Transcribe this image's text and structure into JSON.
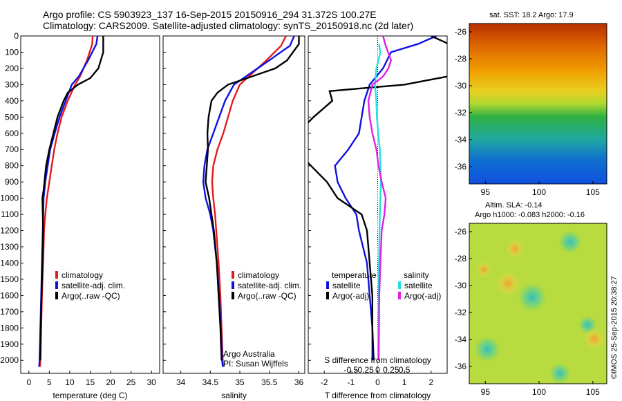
{
  "header": {
    "line1": "Argo profile: CS 5903923_137 16-Sep-2015 20150916_294 31.372S 100.27E",
    "line2": "Climatology: CARS2009. Satellite-adjusted climatology: synTS_20150918.nc (2d later)"
  },
  "colors": {
    "climatology": "#e41a1c",
    "satellite": "#1010e0",
    "argo": "#000000",
    "sat_cyan": "#22e0e0",
    "argo_magenta": "#e020e0"
  },
  "chart_data": [
    {
      "type": "line",
      "name": "temperature-profile",
      "xlabel": "temperature (deg C)",
      "ylabel": "",
      "xlim": [
        -2,
        32
      ],
      "ylim": [
        2080,
        0
      ],
      "xticks": [
        0,
        5,
        10,
        15,
        20,
        25,
        30
      ],
      "yticks": [
        0,
        100,
        200,
        300,
        400,
        500,
        600,
        700,
        800,
        900,
        1000,
        1100,
        1200,
        1300,
        1400,
        1500,
        1600,
        1700,
        1800,
        1900,
        2000
      ],
      "legend": [
        "climatology",
        "satellite-adj. clim.",
        "Argo(..raw -QC)"
      ],
      "series": [
        {
          "name": "climatology",
          "color": "#e41a1c",
          "points": [
            [
              15.6,
              0
            ],
            [
              15.5,
              50
            ],
            [
              14.2,
              150
            ],
            [
              12.5,
              250
            ],
            [
              11.3,
              300
            ],
            [
              9.5,
              400
            ],
            [
              8.0,
              500
            ],
            [
              7.0,
              600
            ],
            [
              6.2,
              700
            ],
            [
              5.6,
              800
            ],
            [
              5.0,
              900
            ],
            [
              4.4,
              1000
            ],
            [
              4.0,
              1100
            ],
            [
              3.7,
              1200
            ],
            [
              3.5,
              1400
            ],
            [
              3.2,
              1600
            ],
            [
              3.0,
              1800
            ],
            [
              2.8,
              2000
            ],
            [
              2.7,
              2040
            ]
          ]
        },
        {
          "name": "satellite-adj. clim.",
          "color": "#1010e0",
          "points": [
            [
              16.8,
              0
            ],
            [
              16.5,
              50
            ],
            [
              14.5,
              150
            ],
            [
              12.2,
              250
            ],
            [
              10.5,
              300
            ],
            [
              9.0,
              400
            ],
            [
              7.5,
              500
            ],
            [
              6.3,
              600
            ],
            [
              5.2,
              700
            ],
            [
              4.6,
              800
            ],
            [
              4.0,
              900
            ],
            [
              3.6,
              1000
            ],
            [
              3.5,
              1100
            ],
            [
              3.4,
              1200
            ],
            [
              3.2,
              1400
            ],
            [
              3.0,
              1600
            ],
            [
              2.8,
              1800
            ],
            [
              2.6,
              2000
            ],
            [
              2.5,
              2040
            ]
          ]
        },
        {
          "name": "Argo(..raw -QC)",
          "color": "#000000",
          "points": [
            [
              18.2,
              0
            ],
            [
              18.2,
              100
            ],
            [
              17.6,
              150
            ],
            [
              17.0,
              200
            ],
            [
              15.0,
              260
            ],
            [
              12.0,
              300
            ],
            [
              9.5,
              350
            ],
            [
              8.5,
              400
            ],
            [
              7.0,
              500
            ],
            [
              6.0,
              600
            ],
            [
              5.0,
              700
            ],
            [
              4.2,
              800
            ],
            [
              3.8,
              900
            ],
            [
              3.6,
              950
            ],
            [
              3.3,
              1000
            ],
            [
              3.4,
              1100
            ],
            [
              3.5,
              1200
            ],
            [
              3.3,
              1400
            ],
            [
              3.1,
              1600
            ],
            [
              2.9,
              1800
            ],
            [
              2.8,
              2000
            ]
          ]
        }
      ]
    },
    {
      "type": "line",
      "name": "salinity-profile",
      "xlabel": "salinity",
      "ylabel": "",
      "xlim": [
        33.7,
        36.1
      ],
      "ylim": [
        2080,
        0
      ],
      "xticks": [
        34,
        34.5,
        35,
        35.5,
        36
      ],
      "legend": [
        "climatology",
        "satellite-adj. clim.",
        "Argo(..raw -QC)"
      ],
      "annotation": [
        "Argo Australia",
        "PI: Susan Wijffels"
      ],
      "series": [
        {
          "name": "climatology",
          "color": "#e41a1c",
          "points": [
            [
              35.78,
              0
            ],
            [
              35.7,
              60
            ],
            [
              35.45,
              150
            ],
            [
              35.15,
              250
            ],
            [
              35.0,
              300
            ],
            [
              34.88,
              400
            ],
            [
              34.8,
              500
            ],
            [
              34.72,
              600
            ],
            [
              34.62,
              700
            ],
            [
              34.55,
              800
            ],
            [
              34.53,
              900
            ],
            [
              34.55,
              1000
            ],
            [
              34.58,
              1100
            ],
            [
              34.6,
              1200
            ],
            [
              34.64,
              1400
            ],
            [
              34.67,
              1600
            ],
            [
              34.69,
              1800
            ],
            [
              34.71,
              2000
            ],
            [
              34.72,
              2040
            ]
          ]
        },
        {
          "name": "satellite-adj. clim.",
          "color": "#1010e0",
          "points": [
            [
              35.92,
              0
            ],
            [
              35.85,
              60
            ],
            [
              35.5,
              150
            ],
            [
              35.1,
              250
            ],
            [
              34.9,
              300
            ],
            [
              34.75,
              400
            ],
            [
              34.65,
              500
            ],
            [
              34.55,
              600
            ],
            [
              34.45,
              700
            ],
            [
              34.4,
              800
            ],
            [
              34.38,
              900
            ],
            [
              34.42,
              1000
            ],
            [
              34.5,
              1100
            ],
            [
              34.55,
              1200
            ],
            [
              34.61,
              1400
            ],
            [
              34.65,
              1600
            ],
            [
              34.68,
              1800
            ],
            [
              34.7,
              2000
            ],
            [
              34.71,
              2040
            ]
          ]
        },
        {
          "name": "Argo(..raw -QC)",
          "color": "#000000",
          "points": [
            [
              36.0,
              0
            ],
            [
              36.0,
              50
            ],
            [
              35.8,
              150
            ],
            [
              35.6,
              200
            ],
            [
              35.2,
              250
            ],
            [
              34.8,
              300
            ],
            [
              34.62,
              350
            ],
            [
              34.52,
              400
            ],
            [
              34.47,
              500
            ],
            [
              34.45,
              600
            ],
            [
              34.46,
              700
            ],
            [
              34.44,
              800
            ],
            [
              34.42,
              900
            ],
            [
              34.48,
              1000
            ],
            [
              34.52,
              1100
            ],
            [
              34.56,
              1200
            ],
            [
              34.61,
              1400
            ],
            [
              34.64,
              1600
            ],
            [
              34.67,
              1800
            ],
            [
              34.69,
              2000
            ]
          ]
        }
      ]
    },
    {
      "type": "line",
      "name": "difference-profile",
      "xlabel": "T difference from climatology",
      "xlabel_top": "S difference from climatology",
      "xlim": [
        -2.6,
        2.6
      ],
      "ylim": [
        2080,
        0
      ],
      "xticks": [
        -2,
        -1,
        0,
        1,
        2
      ],
      "sticks": [
        -0.5,
        -0.25,
        0,
        0.25,
        0.5
      ],
      "sticks_labels": [
        "-0.5",
        "-0.25",
        "0",
        "0.25",
        "0.5"
      ],
      "legend_headers": [
        "temperature",
        "salinity"
      ],
      "legend": [
        "satellite",
        "Argo(-adj)",
        "satellite",
        "Argo(-adj)"
      ],
      "series": [
        {
          "name": "T satellite",
          "color": "#1010e0",
          "points": [
            [
              2.2,
              0
            ],
            [
              1.5,
              50
            ],
            [
              0.5,
              100
            ],
            [
              0.2,
              200
            ],
            [
              -0.3,
              300
            ],
            [
              -0.5,
              400
            ],
            [
              -0.6,
              500
            ],
            [
              -0.7,
              600
            ],
            [
              -1.1,
              700
            ],
            [
              -1.6,
              800
            ],
            [
              -1.5,
              900
            ],
            [
              -1.2,
              1000
            ],
            [
              -0.8,
              1100
            ],
            [
              -0.7,
              1200
            ],
            [
              -0.4,
              1400
            ],
            [
              -0.3,
              1600
            ],
            [
              -0.2,
              1800
            ],
            [
              -0.2,
              2000
            ]
          ]
        },
        {
          "name": "T Argo(-adj)",
          "color": "#000000",
          "points": [
            [
              2.0,
              0
            ],
            [
              2.8,
              60
            ],
            [
              3.0,
              150
            ],
            [
              2.6,
              250
            ],
            [
              1.0,
              300
            ],
            [
              -1.8,
              340
            ],
            [
              -1.7,
              400
            ],
            [
              -2.4,
              500
            ],
            [
              -3.0,
              600
            ],
            [
              -3.1,
              700
            ],
            [
              -2.5,
              800
            ],
            [
              -1.9,
              900
            ],
            [
              -1.5,
              1000
            ],
            [
              -0.6,
              1100
            ],
            [
              -0.4,
              1200
            ],
            [
              -0.3,
              1400
            ],
            [
              -0.2,
              1600
            ],
            [
              -0.2,
              1800
            ],
            [
              -0.15,
              2000
            ]
          ]
        },
        {
          "name": "S satellite",
          "color": "#22e0e0",
          "points": [
            [
              0.05,
              50
            ],
            [
              0.1,
              100
            ],
            [
              -0.05,
              200
            ],
            [
              -0.1,
              300
            ],
            [
              -0.05,
              400
            ],
            [
              -0.03,
              500
            ],
            [
              0.02,
              600
            ],
            [
              0.08,
              700
            ],
            [
              0.1,
              800
            ],
            [
              0.12,
              900
            ],
            [
              0.1,
              1000
            ],
            [
              0.08,
              1100
            ],
            [
              0.07,
              1200
            ],
            [
              0.05,
              1400
            ],
            [
              0.04,
              1600
            ],
            [
              0.03,
              1800
            ],
            [
              0.02,
              2000
            ]
          ]
        },
        {
          "name": "S Argo(-adj)",
          "color": "#e020e0",
          "points": [
            [
              0.2,
              0
            ],
            [
              0.3,
              60
            ],
            [
              0.5,
              150
            ],
            [
              0.4,
              200
            ],
            [
              0.2,
              250
            ],
            [
              -0.2,
              300
            ],
            [
              -0.35,
              400
            ],
            [
              -0.3,
              500
            ],
            [
              -0.2,
              600
            ],
            [
              -0.05,
              700
            ],
            [
              0.03,
              800
            ],
            [
              0.15,
              900
            ],
            [
              0.3,
              1000
            ],
            [
              0.25,
              1100
            ],
            [
              0.15,
              1200
            ],
            [
              0.1,
              1400
            ],
            [
              0.06,
              1600
            ],
            [
              0.05,
              1800
            ],
            [
              0.04,
              2000
            ]
          ]
        }
      ]
    }
  ],
  "maps": {
    "sst": {
      "title": "sat. SST: 18.2 Argo: 17.9",
      "xticks": [
        "95",
        "100",
        "105"
      ],
      "yticks": [
        "-26",
        "-28",
        "-30",
        "-32",
        "-34",
        "-36"
      ]
    },
    "sla": {
      "title1": "Altim. SLA: -0.14",
      "title2": "Argo h1000: -0.083 h2000: -0.16",
      "xticks": [
        "95",
        "100",
        "105"
      ],
      "yticks": [
        "-26",
        "-28",
        "-30",
        "-32",
        "-34",
        "-36"
      ]
    },
    "credit": "©IMOS 25-Sep-2015 20:38:27"
  }
}
